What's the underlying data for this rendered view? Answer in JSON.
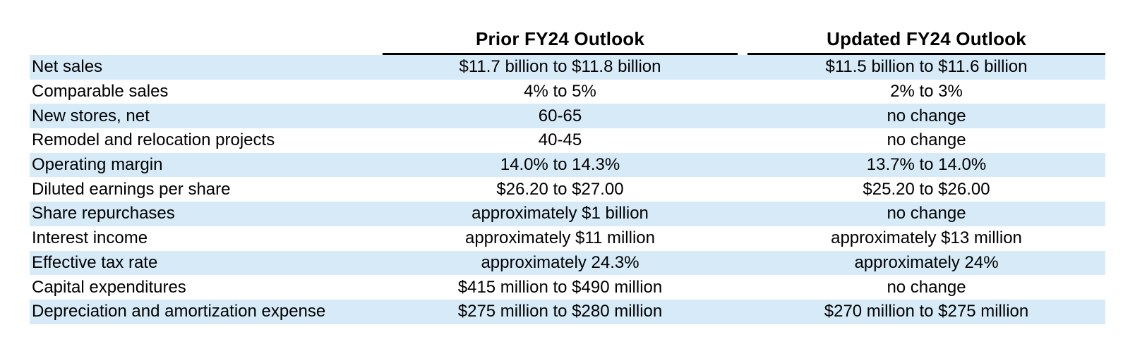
{
  "colors": {
    "row_highlight": "#d6eaf8",
    "rule": "#000000",
    "text": "#000000",
    "background": "#ffffff"
  },
  "table": {
    "columns": {
      "prior": "Prior FY24 Outlook",
      "updated": "Updated FY24 Outlook"
    },
    "rows": [
      {
        "label": "Net sales",
        "prior": "$11.7 billion to $11.8 billion",
        "updated": "$11.5 billion to $11.6 billion"
      },
      {
        "label": "Comparable sales",
        "prior": "4% to 5%",
        "updated": "2% to 3%"
      },
      {
        "label": "New stores, net",
        "prior": "60-65",
        "updated": "no change"
      },
      {
        "label": "Remodel and relocation projects",
        "prior": "40-45",
        "updated": "no change"
      },
      {
        "label": "Operating margin",
        "prior": "14.0% to 14.3%",
        "updated": "13.7% to 14.0%"
      },
      {
        "label": "Diluted earnings per share",
        "prior": "$26.20 to $27.00",
        "updated": "$25.20 to $26.00"
      },
      {
        "label": "Share repurchases",
        "prior": "approximately $1 billion",
        "updated": "no change"
      },
      {
        "label": "Interest income",
        "prior": "approximately $11 million",
        "updated": "approximately $13 million"
      },
      {
        "label": "Effective tax rate",
        "prior": "approximately 24.3%",
        "updated": "approximately 24%"
      },
      {
        "label": "Capital expenditures",
        "prior": "$415 million to $490 million",
        "updated": "no change"
      },
      {
        "label": "Depreciation and amortization expense",
        "prior": "$275 million to $280 million",
        "updated": "$270 million to $275 million"
      }
    ]
  }
}
